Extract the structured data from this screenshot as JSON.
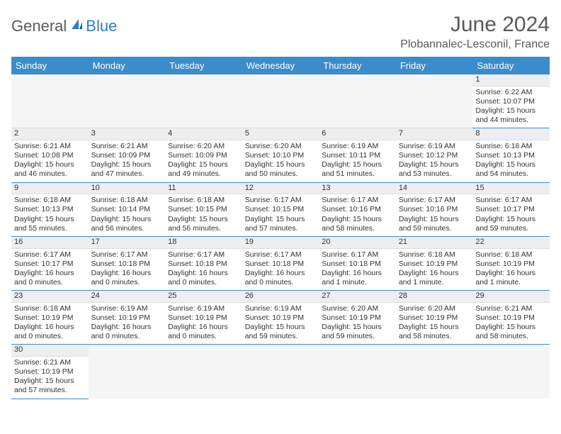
{
  "logo": {
    "text_dark": "General",
    "text_blue": "Blue"
  },
  "title": "June 2024",
  "location": "Plobannalec-Lesconil, France",
  "colors": {
    "header_bg": "#3b8ccb",
    "header_text": "#ffffff",
    "text": "#333333",
    "title_text": "#5a5a5a",
    "logo_blue": "#2a7fc9",
    "empty_bg": "#f5f5f5",
    "daynum_bg": "#eeeeee",
    "row_border": "#3b8ccb"
  },
  "weekdays": [
    "Sunday",
    "Monday",
    "Tuesday",
    "Wednesday",
    "Thursday",
    "Friday",
    "Saturday"
  ],
  "cells": [
    [
      {
        "empty": true
      },
      {
        "empty": true
      },
      {
        "empty": true
      },
      {
        "empty": true
      },
      {
        "empty": true
      },
      {
        "empty": true
      },
      {
        "num": "1",
        "sunrise": "Sunrise: 6:22 AM",
        "sunset": "Sunset: 10:07 PM",
        "daylight": "Daylight: 15 hours and 44 minutes."
      }
    ],
    [
      {
        "num": "2",
        "sunrise": "Sunrise: 6:21 AM",
        "sunset": "Sunset: 10:08 PM",
        "daylight": "Daylight: 15 hours and 46 minutes."
      },
      {
        "num": "3",
        "sunrise": "Sunrise: 6:21 AM",
        "sunset": "Sunset: 10:09 PM",
        "daylight": "Daylight: 15 hours and 47 minutes."
      },
      {
        "num": "4",
        "sunrise": "Sunrise: 6:20 AM",
        "sunset": "Sunset: 10:09 PM",
        "daylight": "Daylight: 15 hours and 49 minutes."
      },
      {
        "num": "5",
        "sunrise": "Sunrise: 6:20 AM",
        "sunset": "Sunset: 10:10 PM",
        "daylight": "Daylight: 15 hours and 50 minutes."
      },
      {
        "num": "6",
        "sunrise": "Sunrise: 6:19 AM",
        "sunset": "Sunset: 10:11 PM",
        "daylight": "Daylight: 15 hours and 51 minutes."
      },
      {
        "num": "7",
        "sunrise": "Sunrise: 6:19 AM",
        "sunset": "Sunset: 10:12 PM",
        "daylight": "Daylight: 15 hours and 53 minutes."
      },
      {
        "num": "8",
        "sunrise": "Sunrise: 6:18 AM",
        "sunset": "Sunset: 10:13 PM",
        "daylight": "Daylight: 15 hours and 54 minutes."
      }
    ],
    [
      {
        "num": "9",
        "sunrise": "Sunrise: 6:18 AM",
        "sunset": "Sunset: 10:13 PM",
        "daylight": "Daylight: 15 hours and 55 minutes."
      },
      {
        "num": "10",
        "sunrise": "Sunrise: 6:18 AM",
        "sunset": "Sunset: 10:14 PM",
        "daylight": "Daylight: 15 hours and 56 minutes."
      },
      {
        "num": "11",
        "sunrise": "Sunrise: 6:18 AM",
        "sunset": "Sunset: 10:15 PM",
        "daylight": "Daylight: 15 hours and 56 minutes."
      },
      {
        "num": "12",
        "sunrise": "Sunrise: 6:17 AM",
        "sunset": "Sunset: 10:15 PM",
        "daylight": "Daylight: 15 hours and 57 minutes."
      },
      {
        "num": "13",
        "sunrise": "Sunrise: 6:17 AM",
        "sunset": "Sunset: 10:16 PM",
        "daylight": "Daylight: 15 hours and 58 minutes."
      },
      {
        "num": "14",
        "sunrise": "Sunrise: 6:17 AM",
        "sunset": "Sunset: 10:16 PM",
        "daylight": "Daylight: 15 hours and 59 minutes."
      },
      {
        "num": "15",
        "sunrise": "Sunrise: 6:17 AM",
        "sunset": "Sunset: 10:17 PM",
        "daylight": "Daylight: 15 hours and 59 minutes."
      }
    ],
    [
      {
        "num": "16",
        "sunrise": "Sunrise: 6:17 AM",
        "sunset": "Sunset: 10:17 PM",
        "daylight": "Daylight: 16 hours and 0 minutes."
      },
      {
        "num": "17",
        "sunrise": "Sunrise: 6:17 AM",
        "sunset": "Sunset: 10:18 PM",
        "daylight": "Daylight: 16 hours and 0 minutes."
      },
      {
        "num": "18",
        "sunrise": "Sunrise: 6:17 AM",
        "sunset": "Sunset: 10:18 PM",
        "daylight": "Daylight: 16 hours and 0 minutes."
      },
      {
        "num": "19",
        "sunrise": "Sunrise: 6:17 AM",
        "sunset": "Sunset: 10:18 PM",
        "daylight": "Daylight: 16 hours and 0 minutes."
      },
      {
        "num": "20",
        "sunrise": "Sunrise: 6:17 AM",
        "sunset": "Sunset: 10:18 PM",
        "daylight": "Daylight: 16 hours and 1 minute."
      },
      {
        "num": "21",
        "sunrise": "Sunrise: 6:18 AM",
        "sunset": "Sunset: 10:19 PM",
        "daylight": "Daylight: 16 hours and 1 minute."
      },
      {
        "num": "22",
        "sunrise": "Sunrise: 6:18 AM",
        "sunset": "Sunset: 10:19 PM",
        "daylight": "Daylight: 16 hours and 1 minute."
      }
    ],
    [
      {
        "num": "23",
        "sunrise": "Sunrise: 6:18 AM",
        "sunset": "Sunset: 10:19 PM",
        "daylight": "Daylight: 16 hours and 0 minutes."
      },
      {
        "num": "24",
        "sunrise": "Sunrise: 6:19 AM",
        "sunset": "Sunset: 10:19 PM",
        "daylight": "Daylight: 16 hours and 0 minutes."
      },
      {
        "num": "25",
        "sunrise": "Sunrise: 6:19 AM",
        "sunset": "Sunset: 10:19 PM",
        "daylight": "Daylight: 16 hours and 0 minutes."
      },
      {
        "num": "26",
        "sunrise": "Sunrise: 6:19 AM",
        "sunset": "Sunset: 10:19 PM",
        "daylight": "Daylight: 15 hours and 59 minutes."
      },
      {
        "num": "27",
        "sunrise": "Sunrise: 6:20 AM",
        "sunset": "Sunset: 10:19 PM",
        "daylight": "Daylight: 15 hours and 59 minutes."
      },
      {
        "num": "28",
        "sunrise": "Sunrise: 6:20 AM",
        "sunset": "Sunset: 10:19 PM",
        "daylight": "Daylight: 15 hours and 58 minutes."
      },
      {
        "num": "29",
        "sunrise": "Sunrise: 6:21 AM",
        "sunset": "Sunset: 10:19 PM",
        "daylight": "Daylight: 15 hours and 58 minutes."
      }
    ],
    [
      {
        "num": "30",
        "sunrise": "Sunrise: 6:21 AM",
        "sunset": "Sunset: 10:19 PM",
        "daylight": "Daylight: 15 hours and 57 minutes."
      },
      {
        "empty": true
      },
      {
        "empty": true
      },
      {
        "empty": true
      },
      {
        "empty": true
      },
      {
        "empty": true
      },
      {
        "empty": true
      }
    ]
  ]
}
